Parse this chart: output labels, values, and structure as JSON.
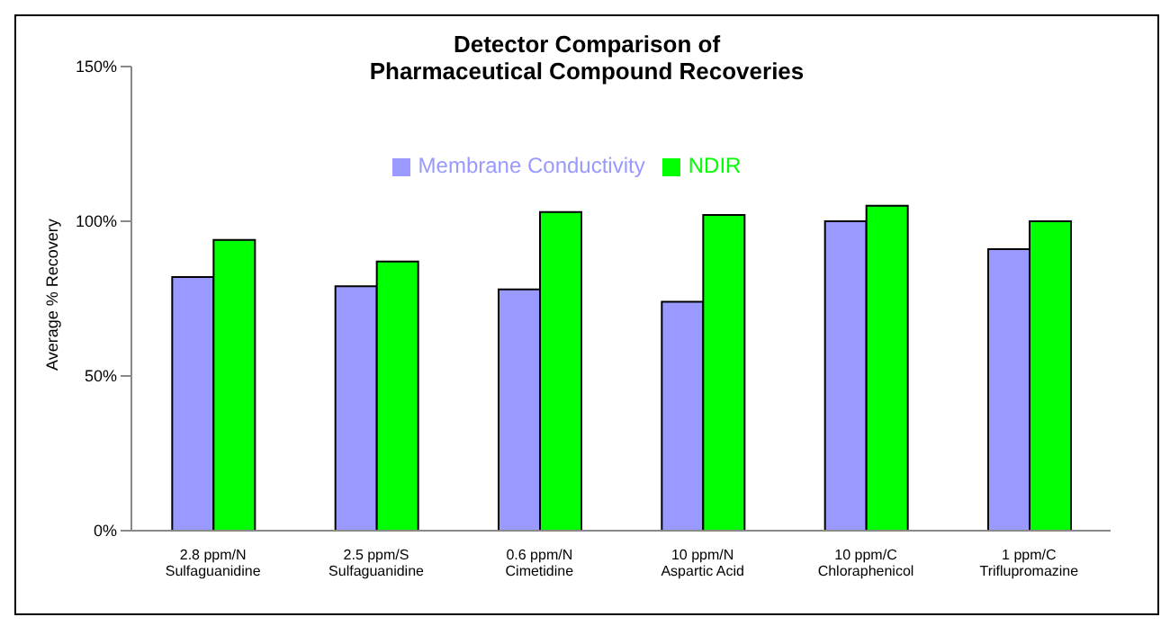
{
  "chart_data": {
    "type": "bar",
    "title": "Detector Comparison of\nPharmaceutical Compound Recoveries",
    "ylabel": "Average % Recovery",
    "categories": [
      "2.8 ppm/N\nSulfaguanidine",
      "2.5 ppm/S\nSulfaguanidine",
      "0.6 ppm/N\nCimetidine",
      "10 ppm/N\nAspartic Acid",
      "10 ppm/C\nChloraphenicol",
      "1 ppm/C\nTriflupromazine"
    ],
    "series": [
      {
        "name": "Membrane Conductivity",
        "color": "#9999ff",
        "values": [
          82,
          79,
          78,
          74,
          100,
          91
        ]
      },
      {
        "name": "NDIR",
        "color": "#00ff00",
        "values": [
          94,
          87,
          103,
          102,
          105,
          100
        ]
      }
    ],
    "ylim": [
      0,
      150
    ],
    "yticks": [
      {
        "value": 0,
        "label": "0%"
      },
      {
        "value": 50,
        "label": "50%"
      },
      {
        "value": 100,
        "label": "100%"
      },
      {
        "value": 150,
        "label": "150%"
      }
    ],
    "grid": false,
    "legend": "top"
  }
}
